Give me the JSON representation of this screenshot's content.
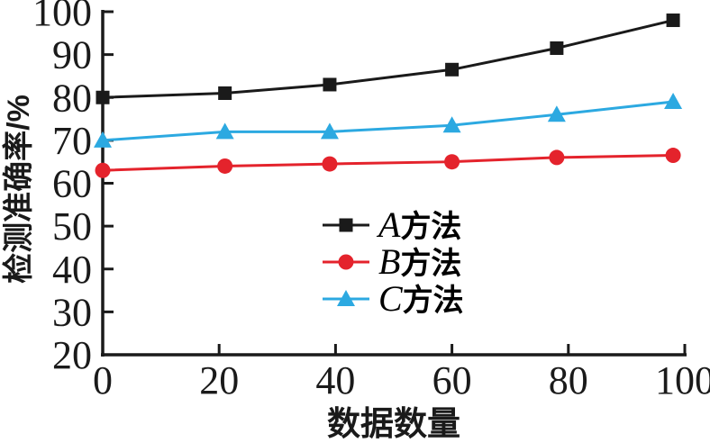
{
  "figure": {
    "background": "#ffffff",
    "axis_color": "#1a1a1a"
  },
  "chart_data": {
    "type": "line",
    "title": "",
    "xlabel": "数据数量",
    "ylabel": "检测准确率/%",
    "xlim": [
      0,
      100
    ],
    "ylim": [
      20,
      100
    ],
    "x_ticks": [
      0,
      20,
      40,
      60,
      80,
      100
    ],
    "y_ticks": [
      20,
      30,
      40,
      50,
      60,
      70,
      80,
      90,
      100
    ],
    "grid": false,
    "legend_position": "inside-center",
    "x": [
      0,
      21,
      39,
      60,
      78,
      98
    ],
    "series": [
      {
        "name": "A方法",
        "color": "#1a1a1a",
        "marker": "square",
        "values": [
          80,
          81,
          83,
          86.5,
          91.5,
          98
        ]
      },
      {
        "name": "B方法",
        "color": "#e4232c",
        "marker": "circle",
        "values": [
          63,
          64,
          64.5,
          65,
          66,
          66.5
        ]
      },
      {
        "name": "C方法",
        "color": "#2ca9e1",
        "marker": "triangle",
        "values": [
          70,
          72,
          72,
          73.5,
          76,
          79
        ]
      }
    ]
  }
}
